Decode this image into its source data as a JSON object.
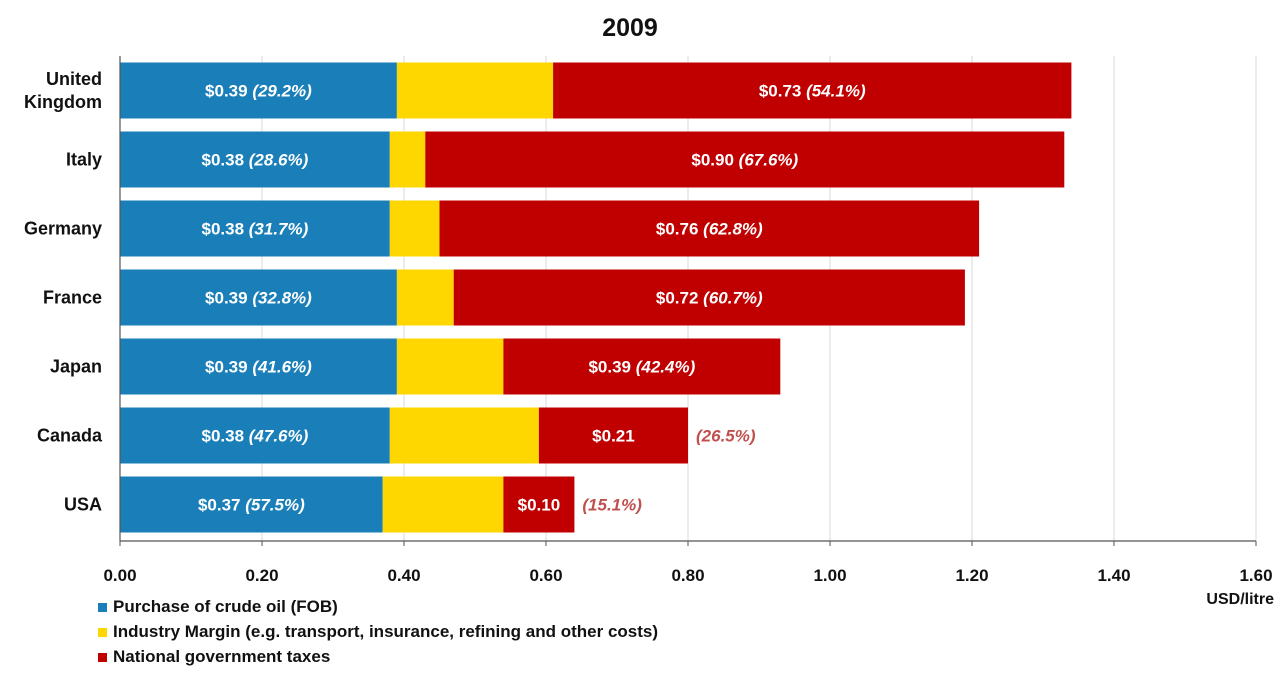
{
  "colors": {
    "crude": "#1a7fb8",
    "margin": "#ffd700",
    "taxes": "#c00000",
    "grid": "#d9d9d9",
    "axis": "#555555",
    "outside_label": "#c0504d"
  },
  "chart_data": {
    "type": "bar",
    "orientation": "horizontal",
    "stacked": true,
    "title": "2009",
    "xlabel": "USD/litre",
    "ylabel": "",
    "xlim": [
      0,
      1.6
    ],
    "xticks": [
      "0.00",
      "0.20",
      "0.40",
      "0.60",
      "0.80",
      "1.00",
      "1.20",
      "1.40",
      "1.60"
    ],
    "grid": "vertical",
    "legend_position": "bottom-left",
    "categories": [
      [
        "United",
        "Kingdom"
      ],
      [
        "Italy"
      ],
      [
        "Germany"
      ],
      [
        "France"
      ],
      [
        "Japan"
      ],
      [
        "Canada"
      ],
      [
        "USA"
      ]
    ],
    "series": [
      {
        "name": "Purchase of crude oil (FOB)",
        "values": [
          0.39,
          0.38,
          0.38,
          0.39,
          0.39,
          0.38,
          0.37
        ],
        "labels": [
          {
            "value": "$0.39",
            "pct": "(29.2%)"
          },
          {
            "value": "$0.38",
            "pct": "(28.6%)"
          },
          {
            "value": "$0.38",
            "pct": "(31.7%)"
          },
          {
            "value": "$0.39",
            "pct": "(32.8%)"
          },
          {
            "value": "$0.39",
            "pct": "(41.6%)"
          },
          {
            "value": "$0.38",
            "pct": "(47.6%)"
          },
          {
            "value": "$0.37",
            "pct": "(57.5%)"
          }
        ]
      },
      {
        "name": "Industry Margin (e.g. transport, insurance, refining and other costs)",
        "values": [
          0.22,
          0.05,
          0.07,
          0.08,
          0.15,
          0.21,
          0.17
        ]
      },
      {
        "name": "National government taxes",
        "values": [
          0.73,
          0.9,
          0.76,
          0.72,
          0.39,
          0.21,
          0.1
        ],
        "labels": [
          {
            "value": "$0.73",
            "pct": "(54.1%)"
          },
          {
            "value": "$0.90",
            "pct": "(67.6%)"
          },
          {
            "value": "$0.76",
            "pct": "(62.8%)"
          },
          {
            "value": "$0.72",
            "pct": "(60.7%)"
          },
          {
            "value": "$0.39",
            "pct": "(42.4%)"
          },
          {
            "value": "$0.21",
            "pct": "(26.5%)"
          },
          {
            "value": "$0.10",
            "pct": "(15.1%)"
          }
        ]
      }
    ]
  }
}
